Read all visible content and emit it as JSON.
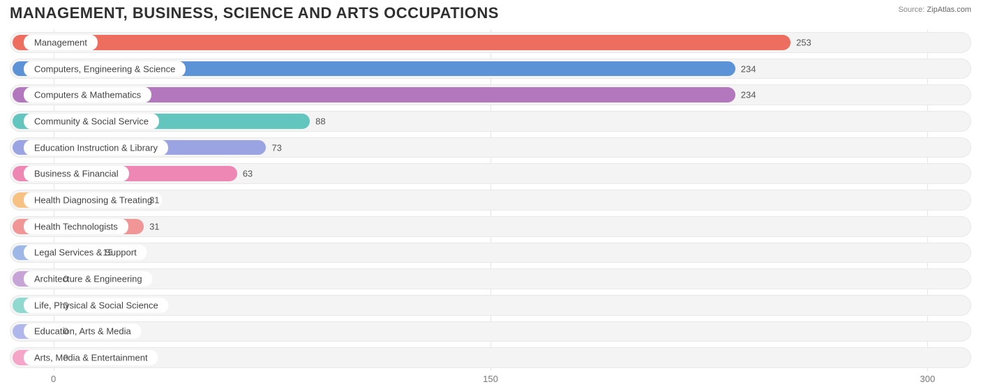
{
  "title": "MANAGEMENT, BUSINESS, SCIENCE AND ARTS OCCUPATIONS",
  "source_label": "Source:",
  "source_value": "ZipAtlas.com",
  "chart": {
    "type": "bar-horizontal",
    "xlim": [
      -15,
      315
    ],
    "xticks": [
      0,
      150,
      300
    ],
    "background_color": "#ffffff",
    "track_color": "#f4f4f4",
    "grid_color": "#e5e5e5",
    "label_fontsize": 13,
    "title_fontsize": 22,
    "bars": [
      {
        "category": "Management",
        "value": 253,
        "color": "#ed6d5e"
      },
      {
        "category": "Computers, Engineering & Science",
        "value": 234,
        "color": "#5c93d6"
      },
      {
        "category": "Computers & Mathematics",
        "value": 234,
        "color": "#b277bd"
      },
      {
        "category": "Community & Social Service",
        "value": 88,
        "color": "#62c6be"
      },
      {
        "category": "Education Instruction & Library",
        "value": 73,
        "color": "#9aa4e3"
      },
      {
        "category": "Business & Financial",
        "value": 63,
        "color": "#ef87b5"
      },
      {
        "category": "Health Diagnosing & Treating",
        "value": 31,
        "color": "#f7c183"
      },
      {
        "category": "Health Technologists",
        "value": 31,
        "color": "#f19696"
      },
      {
        "category": "Legal Services & Support",
        "value": 15,
        "color": "#9db8e6"
      },
      {
        "category": "Architecture & Engineering",
        "value": 0,
        "color": "#c6a4d6"
      },
      {
        "category": "Life, Physical & Social Science",
        "value": 0,
        "color": "#8fd9d0"
      },
      {
        "category": "Education, Arts & Media",
        "value": 0,
        "color": "#b0b8eb"
      },
      {
        "category": "Arts, Media & Entertainment",
        "value": 0,
        "color": "#f5a6c8"
      }
    ]
  }
}
